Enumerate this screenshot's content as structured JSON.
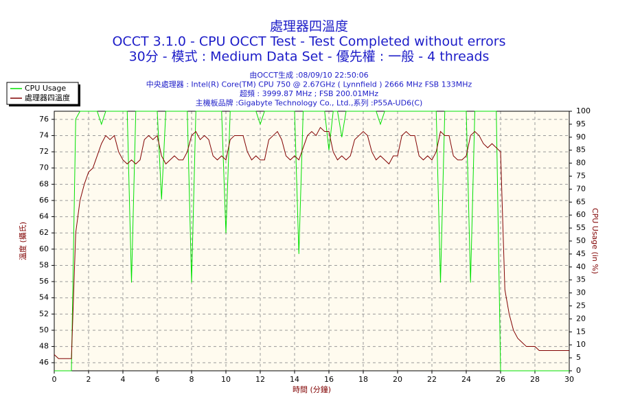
{
  "chart_data": {
    "type": "line",
    "title": [
      "處理器四溫度",
      "OCCT 3.1.0 - CPU OCCT Test - Test Completed without errors",
      "30分 - 模式 : Medium Data Set - 優先權 : 一般 - 4 threads"
    ],
    "subtitle": [
      "由OCCT生成 :08/09/10 22:50:06",
      "中央處理器 : Intel(R) Core(TM) CPU 750 @ 2.67GHz ( Lynnfield ) 2666 MHz FSB 133MHz",
      "超頻 : 3999.87 MHz ; FSB 200.01MHz",
      "主機板品牌 :Gigabyte Technology Co., Ltd.,系列 :P55A-UD6(C)"
    ],
    "x_label": "時間 (分鐘)",
    "y_label": "溫度 (攝氏)",
    "y2_label": "CPU Usage (in %)",
    "legend": "upper left",
    "grid": true,
    "xlim": [
      0,
      30
    ],
    "xticks": [
      0,
      2,
      4,
      6,
      8,
      10,
      12,
      14,
      16,
      18,
      20,
      22,
      24,
      26,
      28,
      30
    ],
    "ylim": [
      45,
      77
    ],
    "yticks": [
      46,
      48,
      50,
      52,
      54,
      56,
      58,
      60,
      62,
      64,
      66,
      68,
      70,
      72,
      74,
      76
    ],
    "y2lim": [
      0,
      100
    ],
    "y2ticks": [
      0,
      5,
      10,
      15,
      20,
      25,
      30,
      35,
      40,
      45,
      50,
      55,
      60,
      65,
      70,
      75,
      80,
      85,
      90,
      95,
      100
    ],
    "x": [
      0,
      0.25,
      0.5,
      0.75,
      1,
      1.25,
      1.5,
      1.75,
      2,
      2.25,
      2.5,
      2.75,
      3,
      3.25,
      3.5,
      3.75,
      4,
      4.25,
      4.5,
      4.75,
      5,
      5.25,
      5.5,
      5.75,
      6,
      6.25,
      6.5,
      6.75,
      7,
      7.25,
      7.5,
      7.75,
      8,
      8.25,
      8.5,
      8.75,
      9,
      9.25,
      9.5,
      9.75,
      10,
      10.25,
      10.5,
      10.75,
      11,
      11.25,
      11.5,
      11.75,
      12,
      12.25,
      12.5,
      12.75,
      13,
      13.25,
      13.5,
      13.75,
      14,
      14.25,
      14.5,
      14.75,
      15,
      15.25,
      15.5,
      15.75,
      16,
      16.25,
      16.5,
      16.75,
      17,
      17.25,
      17.5,
      17.75,
      18,
      18.25,
      18.5,
      18.75,
      19,
      19.25,
      19.5,
      19.75,
      20,
      20.25,
      20.5,
      20.75,
      21,
      21.25,
      21.5,
      21.75,
      22,
      22.25,
      22.5,
      22.75,
      23,
      23.25,
      23.5,
      23.75,
      24,
      24.25,
      24.5,
      24.75,
      25,
      25.25,
      25.5,
      25.75,
      26,
      26.25,
      26.5,
      26.75,
      27,
      27.25,
      27.5,
      27.75,
      28,
      28.25,
      28.5,
      28.75,
      29,
      29.25,
      29.5,
      29.75,
      30
    ],
    "series": [
      {
        "name": "CPU Usage",
        "color": "#00e000",
        "axis": "y2",
        "values": [
          0,
          0,
          0,
          0,
          0,
          97,
          100,
          100,
          100,
          100,
          100,
          95,
          100,
          100,
          100,
          100,
          100,
          100,
          34,
          100,
          100,
          100,
          100,
          100,
          100,
          66,
          100,
          100,
          100,
          100,
          100,
          100,
          34,
          100,
          100,
          100,
          100,
          100,
          100,
          100,
          53,
          100,
          100,
          100,
          100,
          100,
          100,
          100,
          95,
          100,
          100,
          100,
          100,
          100,
          100,
          100,
          100,
          45,
          100,
          100,
          100,
          100,
          100,
          100,
          85,
          100,
          100,
          90,
          100,
          100,
          100,
          100,
          100,
          100,
          100,
          100,
          95,
          100,
          100,
          100,
          100,
          100,
          100,
          100,
          100,
          100,
          100,
          100,
          100,
          100,
          34,
          100,
          100,
          100,
          100,
          100,
          100,
          34,
          100,
          100,
          100,
          100,
          100,
          100,
          0,
          0,
          0,
          0,
          0,
          0,
          0,
          0,
          0,
          0,
          0,
          0,
          0,
          0,
          0,
          0,
          0
        ]
      },
      {
        "name": "處理器四溫度",
        "color": "#800000",
        "values": [
          47,
          46.5,
          46.5,
          46.5,
          46.5,
          62,
          66,
          68,
          69.5,
          70,
          71.5,
          73,
          74,
          73.5,
          74,
          72,
          71,
          70.5,
          71,
          70.5,
          71,
          73.5,
          74,
          73.5,
          74,
          71.5,
          70.5,
          71,
          71.5,
          71,
          71,
          72,
          74,
          74.5,
          73.5,
          74,
          73.5,
          71.5,
          71,
          71.5,
          71,
          73.5,
          74,
          74,
          74,
          72,
          71,
          71.5,
          71,
          71,
          73.5,
          74,
          74.5,
          73.5,
          71.5,
          71,
          71.5,
          71,
          72.5,
          74,
          74.5,
          74,
          75,
          74.5,
          74.5,
          72,
          71,
          71.5,
          71,
          71.5,
          73.5,
          74,
          74.5,
          74,
          72,
          71,
          71.5,
          71,
          70.5,
          71.5,
          71.5,
          74,
          74.5,
          74,
          74,
          71.5,
          71,
          71.5,
          71,
          72,
          74.5,
          74,
          74,
          71.5,
          71,
          71,
          71.5,
          74,
          74.5,
          74,
          73,
          72.5,
          73,
          72.5,
          72,
          55,
          52,
          50,
          49,
          48.5,
          48,
          48,
          48,
          47.5,
          47.5,
          47.5,
          47.5,
          47.5,
          47.5,
          47.5,
          47.5
        ]
      }
    ]
  }
}
